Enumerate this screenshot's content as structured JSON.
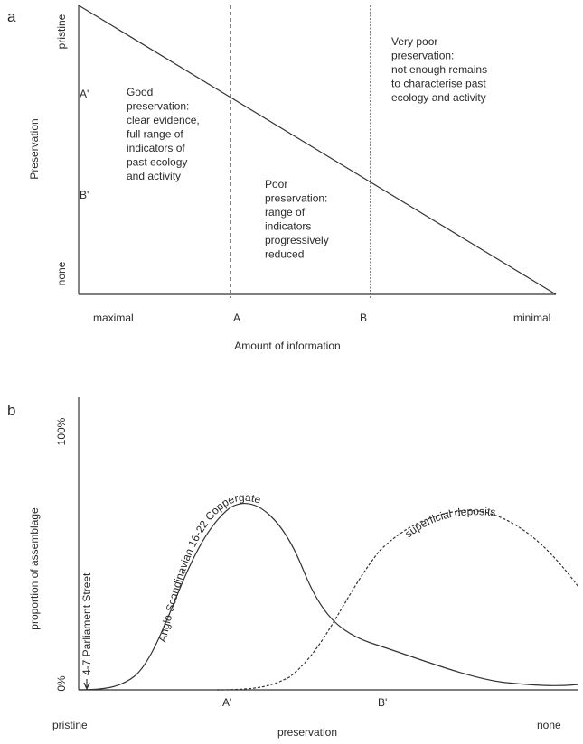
{
  "panel_a": {
    "label": "a",
    "y_axis": {
      "title": "Preservation",
      "top": "pristine",
      "bottom": "none",
      "marks": [
        "A'",
        "B'"
      ]
    },
    "regions": [
      [
        "Good",
        "preservation:",
        "clear evidence,",
        "full range of",
        "indicators of",
        "past ecology",
        "and activity"
      ],
      [
        "Poor",
        "preservation:",
        "range of",
        "indicators",
        "progressively",
        "reduced"
      ],
      [
        "Very poor",
        "preservation:",
        "not enough remains",
        "to characterise past",
        "ecology and activity"
      ]
    ],
    "x_axis": {
      "title": "Amount of information",
      "left": "maximal",
      "right": "minimal",
      "marks": [
        "A",
        "B"
      ]
    }
  },
  "panel_b": {
    "label": "b",
    "y_axis": {
      "title": "proportion of assemblage",
      "top": "100%",
      "bottom": "0%"
    },
    "curves": [
      "Anglo-Scandinavian 16-22 Coppergate",
      "superficial deposits",
      "4-7 Parliament Street"
    ],
    "x_axis": {
      "title": "preservation",
      "left": "pristine",
      "right": "none",
      "marks": [
        "A'",
        "B'"
      ]
    }
  }
}
